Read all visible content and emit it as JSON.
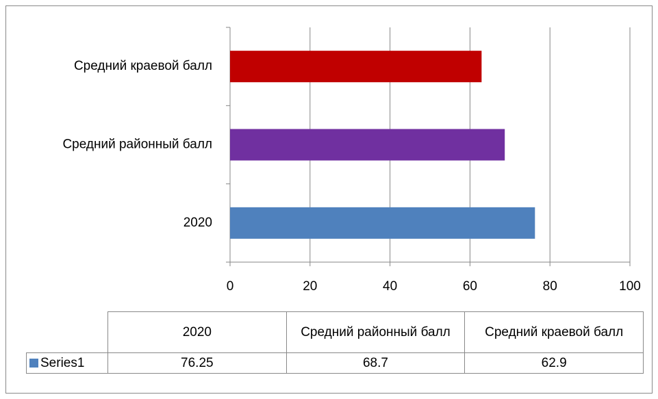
{
  "chart_data": {
    "type": "barh",
    "categories": [
      "2020",
      "Средний районный балл",
      "Средний краевой балл"
    ],
    "series": [
      {
        "name": "Series1",
        "color": "#4f81bd",
        "values": [
          76.25,
          68.7,
          62.9
        ]
      }
    ],
    "colors": [
      "#4f81bd",
      "#7030a0",
      "#c00000"
    ],
    "xlim": [
      0,
      100
    ],
    "xticks": [
      0,
      20,
      40,
      60,
      80,
      100
    ],
    "grid": true,
    "data_table": true
  }
}
